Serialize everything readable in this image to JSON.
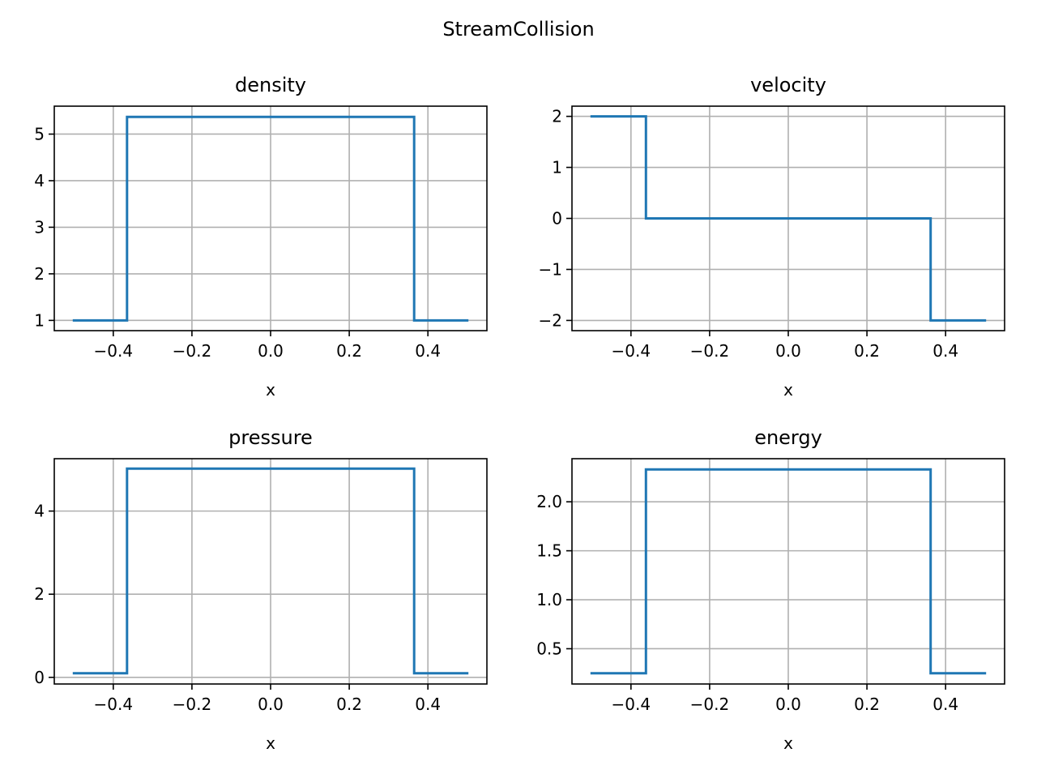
{
  "figure": {
    "title": "StreamCollision"
  },
  "style": {
    "line_color": "#1f77b4",
    "grid_color": "#b0b0b0",
    "axes_color": "#000000",
    "background": "#ffffff"
  },
  "chart_data": [
    {
      "type": "line",
      "drawstyle": "steps",
      "title": "density",
      "xlabel": "x",
      "ylabel": "",
      "xlim": [
        -0.55,
        0.55
      ],
      "ylim": [
        0.78,
        5.6
      ],
      "grid": true,
      "xticks": [
        -0.4,
        -0.2,
        0.0,
        0.2,
        0.4
      ],
      "xtick_labels": [
        "−0.4",
        "−0.2",
        "0.0",
        "0.2",
        "0.4"
      ],
      "yticks": [
        1,
        2,
        3,
        4,
        5
      ],
      "ytick_labels": [
        "1",
        "2",
        "3",
        "4",
        "5"
      ],
      "series": [
        {
          "x": [
            -0.5,
            -0.365,
            -0.365,
            0.365,
            0.365,
            0.5
          ],
          "y": [
            1.0,
            1.0,
            5.37,
            5.37,
            1.0,
            1.0
          ]
        }
      ]
    },
    {
      "type": "line",
      "drawstyle": "steps",
      "title": "velocity",
      "xlabel": "x",
      "ylabel": "",
      "xlim": [
        -0.55,
        0.55
      ],
      "ylim": [
        -2.2,
        2.2
      ],
      "grid": true,
      "xticks": [
        -0.4,
        -0.2,
        0.0,
        0.2,
        0.4
      ],
      "xtick_labels": [
        "−0.4",
        "−0.2",
        "0.0",
        "0.2",
        "0.4"
      ],
      "yticks": [
        -2,
        -1,
        0,
        1,
        2
      ],
      "ytick_labels": [
        "−2",
        "−1",
        "0",
        "1",
        "2"
      ],
      "series": [
        {
          "x": [
            -0.5,
            -0.362,
            -0.362,
            0.362,
            0.362,
            0.5
          ],
          "y": [
            2.0,
            2.0,
            0.0,
            0.0,
            -2.0,
            -2.0
          ]
        }
      ]
    },
    {
      "type": "line",
      "drawstyle": "steps",
      "title": "pressure",
      "xlabel": "x",
      "ylabel": "",
      "xlim": [
        -0.55,
        0.55
      ],
      "ylim": [
        -0.16,
        5.26
      ],
      "grid": true,
      "xticks": [
        -0.4,
        -0.2,
        0.0,
        0.2,
        0.4
      ],
      "xtick_labels": [
        "−0.4",
        "−0.2",
        "0.0",
        "0.2",
        "0.4"
      ],
      "yticks": [
        0,
        2,
        4
      ],
      "ytick_labels": [
        "0",
        "2",
        "4"
      ],
      "series": [
        {
          "x": [
            -0.5,
            -0.365,
            -0.365,
            0.365,
            0.365,
            0.5
          ],
          "y": [
            0.1,
            0.1,
            5.02,
            5.02,
            0.1,
            0.1
          ]
        }
      ]
    },
    {
      "type": "line",
      "drawstyle": "steps",
      "title": "energy",
      "xlabel": "x",
      "ylabel": "",
      "xlim": [
        -0.55,
        0.55
      ],
      "ylim": [
        0.14,
        2.44
      ],
      "grid": true,
      "xticks": [
        -0.4,
        -0.2,
        0.0,
        0.2,
        0.4
      ],
      "xtick_labels": [
        "−0.4",
        "−0.2",
        "0.0",
        "0.2",
        "0.4"
      ],
      "yticks": [
        0.5,
        1.0,
        1.5,
        2.0
      ],
      "ytick_labels": [
        "0.5",
        "1.0",
        "1.5",
        "2.0"
      ],
      "series": [
        {
          "x": [
            -0.5,
            -0.362,
            -0.362,
            0.362,
            0.362,
            0.5
          ],
          "y": [
            0.25,
            0.25,
            2.33,
            2.33,
            0.25,
            0.25
          ]
        }
      ]
    }
  ]
}
